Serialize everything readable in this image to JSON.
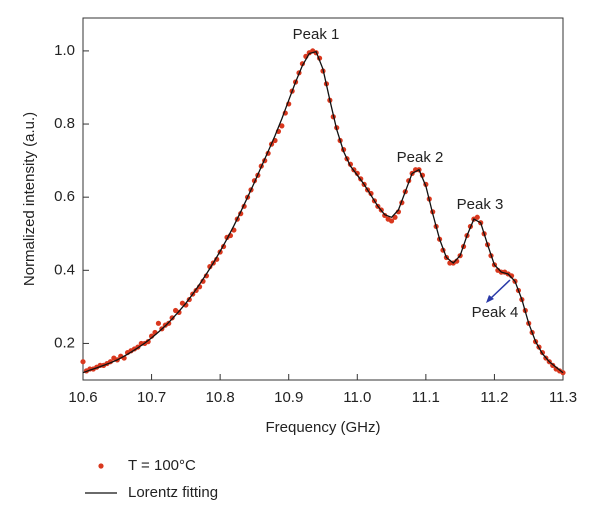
{
  "chart_data": {
    "type": "scatter",
    "xlabel": "Frequency (GHz)",
    "ylabel": "Normalized intensity (a.u.)",
    "xlim": [
      10.6,
      11.3
    ],
    "ylim": [
      0.1,
      1.09
    ],
    "xticks": [
      10.6,
      10.7,
      10.8,
      10.9,
      11.0,
      {
        "value": 11,
        "label": "11.0"
      },
      11.1,
      11.2,
      11.3
    ],
    "yticks": [
      0.2,
      0.4,
      0.6,
      0.8,
      {
        "value": 1,
        "label": "1.0"
      }
    ],
    "annotations": [
      "Peak 1",
      "Peak 2",
      "Peak 3",
      "Peak 4"
    ],
    "series": [
      {
        "name": "T = 100°C",
        "type": "scatter",
        "color": "#d9381e",
        "x": [
          10.6,
          10.605,
          10.61,
          10.615,
          10.62,
          10.625,
          10.63,
          10.635,
          10.64,
          10.645,
          10.65,
          10.655,
          10.66,
          10.665,
          10.67,
          10.675,
          10.68,
          10.685,
          10.69,
          10.695,
          10.7,
          10.705,
          10.71,
          10.715,
          10.72,
          10.725,
          10.73,
          10.735,
          10.74,
          10.745,
          10.75,
          10.755,
          10.76,
          10.765,
          10.77,
          10.775,
          10.78,
          10.785,
          10.79,
          10.795,
          10.8,
          10.805,
          10.81,
          10.815,
          10.82,
          10.825,
          10.83,
          10.835,
          10.84,
          10.845,
          10.85,
          10.855,
          10.86,
          10.865,
          10.87,
          10.875,
          10.88,
          10.885,
          10.89,
          10.895,
          10.9,
          10.905,
          10.91,
          10.915,
          10.92,
          10.925,
          10.93,
          10.935,
          10.94,
          10.945,
          10.95,
          10.955,
          10.96,
          10.965,
          10.97,
          10.975,
          10.98,
          10.985,
          10.99,
          10.995,
          11.0,
          11.005,
          11.01,
          11.015,
          11.02,
          11.025,
          11.03,
          11.035,
          11.04,
          11.045,
          11.05,
          11.055,
          11.06,
          11.065,
          11.07,
          11.075,
          11.08,
          11.085,
          11.09,
          11.095,
          11.1,
          11.105,
          11.11,
          11.115,
          11.12,
          11.125,
          11.13,
          11.135,
          11.14,
          11.145,
          11.15,
          11.155,
          11.16,
          11.165,
          11.17,
          11.175,
          11.18,
          11.185,
          11.19,
          11.195,
          11.2,
          11.205,
          11.21,
          11.215,
          11.22,
          11.225,
          11.23,
          11.235,
          11.24,
          11.245,
          11.25,
          11.255,
          11.26,
          11.265,
          11.27,
          11.275,
          11.28,
          11.285,
          11.29,
          11.295,
          11.3
        ],
        "values": [
          0.15,
          0.125,
          0.13,
          0.13,
          0.135,
          0.14,
          0.14,
          0.145,
          0.15,
          0.16,
          0.155,
          0.165,
          0.16,
          0.175,
          0.18,
          0.185,
          0.19,
          0.2,
          0.2,
          0.205,
          0.22,
          0.23,
          0.255,
          0.24,
          0.25,
          0.255,
          0.27,
          0.29,
          0.285,
          0.31,
          0.305,
          0.32,
          0.335,
          0.345,
          0.355,
          0.37,
          0.385,
          0.41,
          0.42,
          0.43,
          0.45,
          0.465,
          0.49,
          0.495,
          0.51,
          0.54,
          0.555,
          0.575,
          0.6,
          0.62,
          0.645,
          0.66,
          0.685,
          0.7,
          0.72,
          0.745,
          0.755,
          0.78,
          0.795,
          0.83,
          0.855,
          0.89,
          0.915,
          0.94,
          0.965,
          0.985,
          0.995,
          1.0,
          0.995,
          0.98,
          0.945,
          0.91,
          0.865,
          0.82,
          0.79,
          0.755,
          0.73,
          0.705,
          0.69,
          0.675,
          0.665,
          0.65,
          0.635,
          0.62,
          0.61,
          0.59,
          0.575,
          0.565,
          0.55,
          0.54,
          0.535,
          0.545,
          0.56,
          0.585,
          0.615,
          0.645,
          0.665,
          0.675,
          0.675,
          0.66,
          0.635,
          0.595,
          0.56,
          0.52,
          0.485,
          0.455,
          0.435,
          0.42,
          0.42,
          0.425,
          0.44,
          0.465,
          0.495,
          0.52,
          0.54,
          0.545,
          0.53,
          0.5,
          0.47,
          0.44,
          0.415,
          0.4,
          0.395,
          0.395,
          0.39,
          0.385,
          0.37,
          0.345,
          0.32,
          0.29,
          0.255,
          0.23,
          0.205,
          0.19,
          0.175,
          0.16,
          0.15,
          0.14,
          0.13,
          0.125,
          0.12
        ]
      },
      {
        "name": "Lorentz fitting",
        "type": "line",
        "color": "#111111",
        "x": [
          10.6,
          10.61,
          10.62,
          10.63,
          10.64,
          10.65,
          10.66,
          10.67,
          10.68,
          10.69,
          10.7,
          10.71,
          10.72,
          10.73,
          10.74,
          10.75,
          10.76,
          10.77,
          10.78,
          10.79,
          10.8,
          10.81,
          10.82,
          10.83,
          10.84,
          10.85,
          10.86,
          10.87,
          10.88,
          10.89,
          10.9,
          10.91,
          10.92,
          10.93,
          10.94,
          10.95,
          10.96,
          10.97,
          10.98,
          10.99,
          11.0,
          11.01,
          11.02,
          11.03,
          11.04,
          11.05,
          11.06,
          11.07,
          11.08,
          11.09,
          11.1,
          11.11,
          11.12,
          11.13,
          11.14,
          11.15,
          11.16,
          11.17,
          11.18,
          11.19,
          11.2,
          11.21,
          11.22,
          11.23,
          11.24,
          11.25,
          11.26,
          11.27,
          11.28,
          11.29,
          11.3
        ],
        "values": [
          0.12,
          0.127,
          0.133,
          0.14,
          0.147,
          0.155,
          0.165,
          0.176,
          0.188,
          0.201,
          0.215,
          0.231,
          0.248,
          0.267,
          0.288,
          0.31,
          0.335,
          0.362,
          0.39,
          0.42,
          0.452,
          0.486,
          0.522,
          0.56,
          0.6,
          0.64,
          0.683,
          0.725,
          0.768,
          0.815,
          0.865,
          0.915,
          0.96,
          0.993,
          0.998,
          0.95,
          0.865,
          0.785,
          0.725,
          0.685,
          0.66,
          0.635,
          0.605,
          0.575,
          0.552,
          0.545,
          0.565,
          0.615,
          0.665,
          0.675,
          0.63,
          0.555,
          0.485,
          0.435,
          0.42,
          0.44,
          0.495,
          0.54,
          0.53,
          0.47,
          0.415,
          0.395,
          0.39,
          0.37,
          0.32,
          0.255,
          0.205,
          0.172,
          0.15,
          0.135,
          0.12
        ]
      }
    ]
  }
}
